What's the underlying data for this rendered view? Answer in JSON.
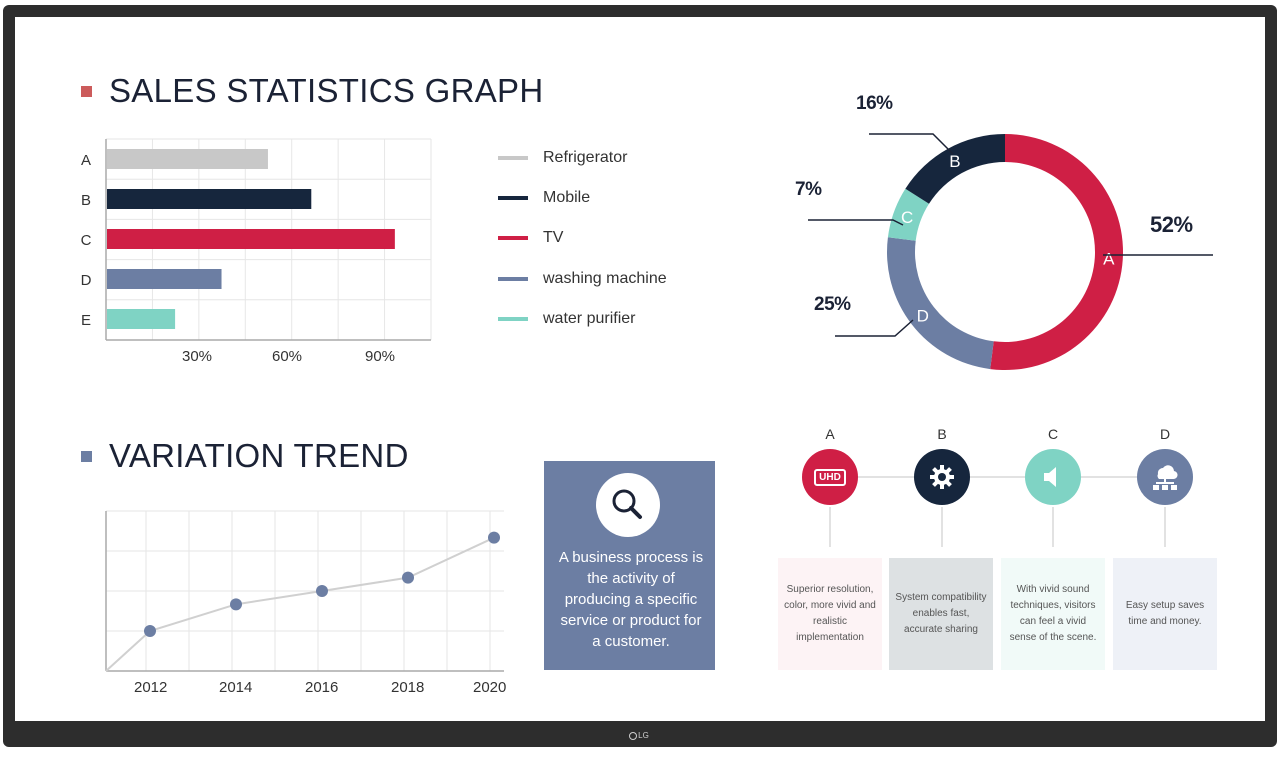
{
  "sales": {
    "title": "SALES STATISTICS GRAPH",
    "bullet_color": "#cc5b5b",
    "bar_chart": {
      "type": "bar",
      "orientation": "horizontal",
      "categories": [
        "A",
        "B",
        "C",
        "D",
        "E"
      ],
      "values": [
        52,
        66,
        93,
        37,
        22
      ],
      "colors": [
        "#c8c8c8",
        "#16263d",
        "#cf1f45",
        "#6c7ea3",
        "#7fd3c4"
      ],
      "xticks": [
        "30%",
        "60%",
        "90%"
      ],
      "xlim": [
        0,
        105
      ],
      "grid": true
    },
    "legend": [
      {
        "label": "Refrigerator",
        "color": "#c8c8c8"
      },
      {
        "label": "Mobile",
        "color": "#16263d"
      },
      {
        "label": "TV",
        "color": "#cf1f45"
      },
      {
        "label": "washing machine",
        "color": "#6c7ea3"
      },
      {
        "label": "water purifier",
        "color": "#7fd3c4"
      }
    ]
  },
  "donut": {
    "type": "pie",
    "segments": [
      {
        "label": "A",
        "value": 52,
        "pct": "52%",
        "color": "#cf1f45"
      },
      {
        "label": "D",
        "value": 25,
        "pct": "25%",
        "color": "#6c7ea3"
      },
      {
        "label": "C",
        "value": 7,
        "pct": "7%",
        "color": "#7fd3c4"
      },
      {
        "label": "B",
        "value": 16,
        "pct": "16%",
        "color": "#16263d"
      }
    ]
  },
  "trend": {
    "title": "VARIATION TREND",
    "bullet_color": "#6c7ea3",
    "line_chart": {
      "type": "line",
      "x": [
        2012,
        2014,
        2016,
        2018,
        2020
      ],
      "x_labels": [
        "2012",
        "2014",
        "2016",
        "2018",
        "2020"
      ],
      "values": [
        1.5,
        2.5,
        3.0,
        3.5,
        5.0
      ],
      "ylim": [
        0,
        6
      ],
      "color": "#6c7ea3",
      "line_color": "#d0d0d0",
      "grid": true
    }
  },
  "info": {
    "text": "A business process is the activity of producing a specific service or product for a customer.",
    "icon": "magnifier-icon"
  },
  "features": [
    {
      "letter": "A",
      "icon": "uhd-icon",
      "icon_text": "UHD",
      "color": "#cf1f45",
      "card_bg": "#fdf3f5",
      "text": "Superior resolution, color, more vivid and realistic implementation"
    },
    {
      "letter": "B",
      "icon": "gear-icon",
      "color": "#16263d",
      "card_bg": "#dde1e3",
      "text": "System compatibility enables fast, accurate sharing"
    },
    {
      "letter": "C",
      "icon": "speaker-icon",
      "color": "#7fd3c4",
      "card_bg": "#f1faf8",
      "text": "With vivid sound techniques, visitors can feel a vivid sense of the scene."
    },
    {
      "letter": "D",
      "icon": "network-icon",
      "color": "#6c7ea3",
      "card_bg": "#eef1f7",
      "text": "Easy setup saves time and money."
    }
  ],
  "brand": {
    "logo": "LG"
  }
}
